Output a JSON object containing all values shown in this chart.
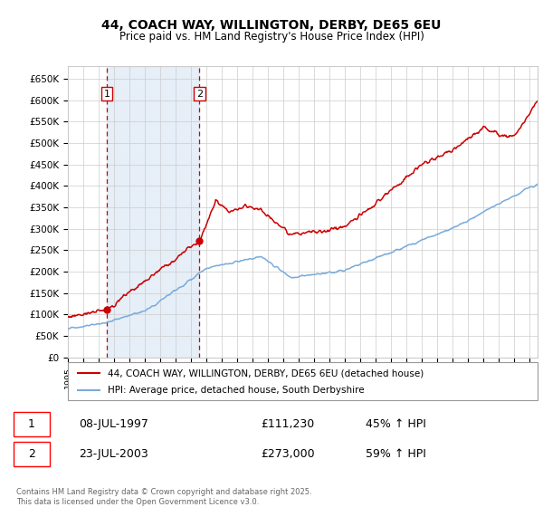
{
  "title": "44, COACH WAY, WILLINGTON, DERBY, DE65 6EU",
  "subtitle": "Price paid vs. HM Land Registry's House Price Index (HPI)",
  "ylim": [
    0,
    680000
  ],
  "yticks": [
    0,
    50000,
    100000,
    150000,
    200000,
    250000,
    300000,
    350000,
    400000,
    450000,
    500000,
    550000,
    600000,
    650000
  ],
  "ytick_labels": [
    "£0",
    "£50K",
    "£100K",
    "£150K",
    "£200K",
    "£250K",
    "£300K",
    "£350K",
    "£400K",
    "£450K",
    "£500K",
    "£550K",
    "£600K",
    "£650K"
  ],
  "xlim_start": 1995.0,
  "xlim_end": 2025.5,
  "sale1_date": 1997.52,
  "sale1_price": 111230,
  "sale1_label": "1",
  "sale2_date": 2003.55,
  "sale2_price": 273000,
  "sale2_label": "2",
  "legend_line1": "44, COACH WAY, WILLINGTON, DERBY, DE65 6EU (detached house)",
  "legend_line2": "HPI: Average price, detached house, South Derbyshire",
  "table_row1": [
    "1",
    "08-JUL-1997",
    "£111,230",
    "45% ↑ HPI"
  ],
  "table_row2": [
    "2",
    "23-JUL-2003",
    "£273,000",
    "59% ↑ HPI"
  ],
  "footnote": "Contains HM Land Registry data © Crown copyright and database right 2025.\nThis data is licensed under the Open Government Licence v3.0.",
  "hpi_color": "#7aabda",
  "price_color": "#cc0000",
  "background_color": "#ffffff",
  "grid_color": "#cccccc",
  "shaded_region_color": "#dce8f5",
  "label_box_color": "#cc0000"
}
